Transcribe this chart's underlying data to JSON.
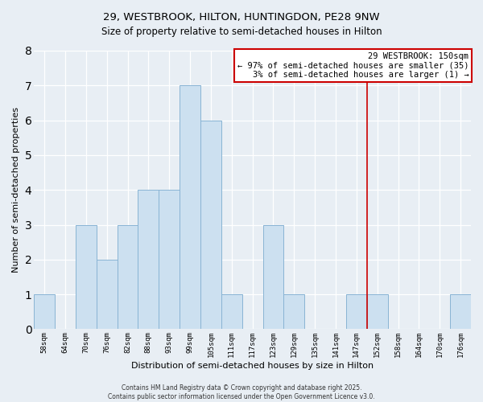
{
  "title": "29, WESTBROOK, HILTON, HUNTINGDON, PE28 9NW",
  "subtitle": "Size of property relative to semi-detached houses in Hilton",
  "xlabel": "Distribution of semi-detached houses by size in Hilton",
  "ylabel": "Number of semi-detached properties",
  "bin_labels": [
    "58sqm",
    "64sqm",
    "70sqm",
    "76sqm",
    "82sqm",
    "88sqm",
    "93sqm",
    "99sqm",
    "105sqm",
    "111sqm",
    "117sqm",
    "123sqm",
    "129sqm",
    "135sqm",
    "141sqm",
    "147sqm",
    "152sqm",
    "158sqm",
    "164sqm",
    "170sqm",
    "176sqm"
  ],
  "bar_values": [
    1,
    0,
    3,
    2,
    3,
    4,
    4,
    7,
    6,
    1,
    0,
    3,
    1,
    0,
    0,
    1,
    1,
    0,
    0,
    0,
    1
  ],
  "bar_color": "#cce0f0",
  "bar_edge_color": "#89b4d4",
  "ylim": [
    0,
    8
  ],
  "yticks": [
    0,
    1,
    2,
    3,
    4,
    5,
    6,
    7,
    8
  ],
  "vline_x_index": 15.5,
  "vline_color": "#cc0000",
  "legend_title": "29 WESTBROOK: 150sqm",
  "legend_line1": "← 97% of semi-detached houses are smaller (35)",
  "legend_line2": "3% of semi-detached houses are larger (1) →",
  "legend_box_color": "#ffffff",
  "legend_box_edge": "#cc0000",
  "footer_line1": "Contains HM Land Registry data © Crown copyright and database right 2025.",
  "footer_line2": "Contains public sector information licensed under the Open Government Licence v3.0.",
  "background_color": "#e8eef4",
  "grid_color": "#ffffff",
  "title_fontsize": 9.5,
  "subtitle_fontsize": 8.5,
  "axis_label_fontsize": 8,
  "tick_fontsize": 6.5,
  "legend_fontsize": 7.5,
  "footer_fontsize": 5.5
}
